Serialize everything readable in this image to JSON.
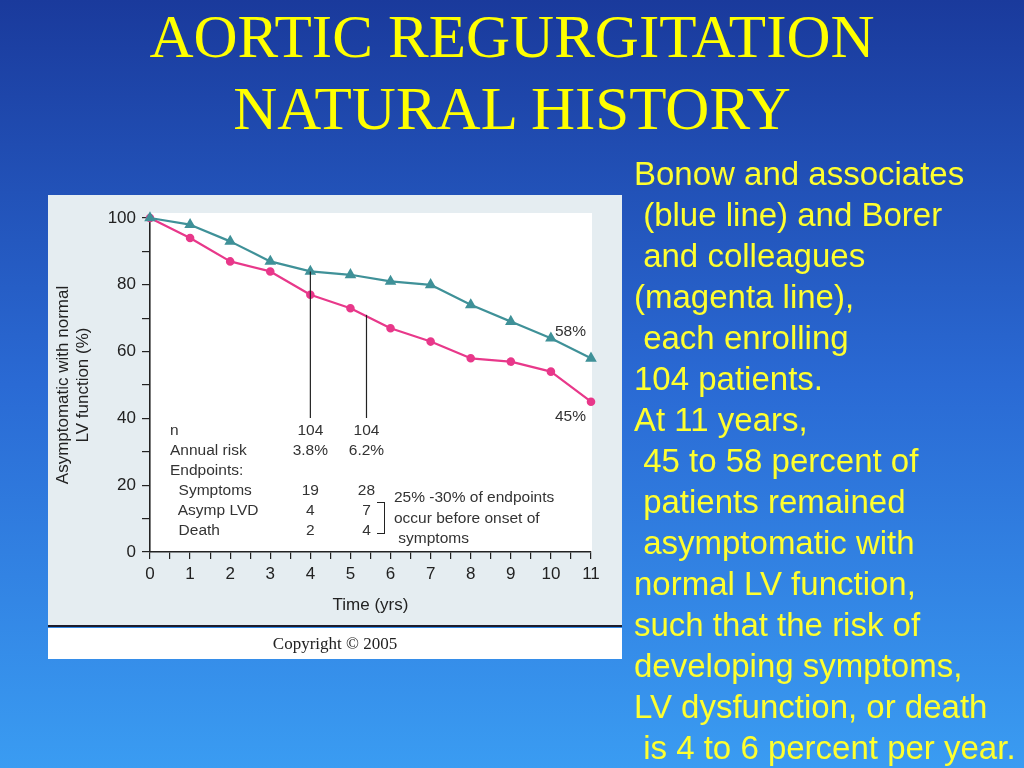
{
  "chart_data": {
    "type": "line",
    "title": "AORTIC REGURGITATION NATURAL HISTORY",
    "xlabel": "Time (yrs)",
    "ylabel": "Asymptomatic with normal LV function (%)",
    "x": [
      0,
      1,
      2,
      3,
      4,
      5,
      6,
      7,
      8,
      9,
      10,
      11
    ],
    "series": [
      {
        "color": "#3f9198",
        "marker": "triangle",
        "values": [
          100,
          98,
          93,
          87,
          84,
          83,
          81,
          80,
          74,
          69,
          64,
          58
        ],
        "value_labels": [
          null,
          null,
          null,
          null,
          null,
          null,
          null,
          null,
          null,
          null,
          null,
          "58%"
        ]
      },
      {
        "color": "#e8388a",
        "marker": "circle",
        "values": [
          100,
          94,
          87,
          84,
          77,
          73,
          67,
          63,
          58,
          57,
          54,
          45
        ],
        "value_labels": [
          null,
          null,
          null,
          null,
          null,
          null,
          null,
          null,
          null,
          null,
          null,
          "45%"
        ]
      }
    ],
    "xlim": [
      0,
      11
    ],
    "xticks": [
      0,
      {
        "value": 0.5,
        "label": null
      },
      1,
      {
        "value": 1.5,
        "label": null
      },
      2,
      {
        "value": 2.5,
        "label": null
      },
      3,
      {
        "value": 3.5,
        "label": null
      },
      4,
      {
        "value": 4.5,
        "label": null
      },
      5,
      {
        "value": 5.5,
        "label": null
      },
      6,
      {
        "value": 6.5,
        "label": null
      },
      7,
      {
        "value": 7.5,
        "label": null
      },
      8,
      {
        "value": 8.5,
        "label": null
      },
      9,
      {
        "value": 9.5,
        "label": null
      },
      10,
      {
        "value": 10.5,
        "label": null
      },
      11
    ],
    "ylim": [
      0,
      100
    ],
    "yticks": [
      0,
      {
        "value": 10,
        "label": null
      },
      20,
      {
        "value": 30,
        "label": null
      },
      40,
      {
        "value": 50,
        "label": null
      },
      60,
      {
        "value": 70,
        "label": null
      },
      80,
      {
        "value": 90,
        "label": null
      },
      100
    ],
    "grid": false,
    "legend": false,
    "line_style": "solid",
    "annotations": [
      "n\nAnnual risk\nEndpoints:\n  Symptoms\n  Asymp LVD\n  Death",
      {
        "text": "104\n3.8%",
        "x": 4,
        "y": 84
      },
      "19\n4\n2",
      {
        "text": "104\n6.2%",
        "x": 5.4,
        "y": 71
      },
      "28\n7\n4",
      "25% -30% of endpoints\noccur before onset of\n symptoms",
      "Copyright © 2005",
      "Bonow and associates\n (blue line) and Borer\n and colleagues\n(magenta line),\n each enrolling\n104 patients.\nAt 11 years,\n 45 to 58 percent of\n patients remained\n asymptomatic with\nnormal LV function,\nsuch that the risk of\ndeveloping symptoms,\nLV dysfunction, or death\n is 4 to 6 percent per year."
    ]
  }
}
